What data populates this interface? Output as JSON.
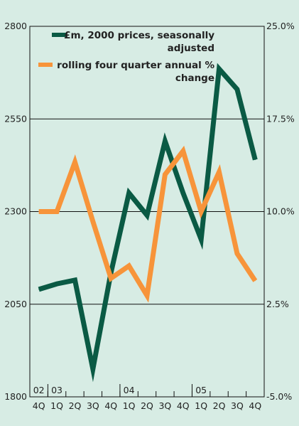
{
  "chart_data": {
    "type": "line",
    "title": "",
    "x_categories": [
      "4Q",
      "1Q",
      "2Q",
      "3Q",
      "4Q",
      "1Q",
      "2Q",
      "3Q",
      "4Q",
      "1Q",
      "2Q",
      "3Q",
      "4Q"
    ],
    "year_labels": [
      {
        "label": "02",
        "index": 0
      },
      {
        "label": "03",
        "index": 1
      },
      {
        "label": "04",
        "index": 5
      },
      {
        "label": "05",
        "index": 9
      }
    ],
    "left_axis": {
      "min": 1800,
      "max": 2800,
      "ticks": [
        1800,
        2050,
        2300,
        2550,
        2800
      ],
      "tick_labels": [
        "1800",
        "2050",
        "2300",
        "2550",
        "2800"
      ]
    },
    "right_axis": {
      "min": -5.0,
      "max": 25.0,
      "ticks": [
        -5.0,
        2.5,
        10.0,
        17.5,
        25.0
      ],
      "tick_labels": [
        "-5.0%",
        "2.5%",
        "10.0%",
        "17.5%",
        "25.0%"
      ]
    },
    "grid": "horizontal",
    "legend_position": "top-right",
    "series": [
      {
        "name": "£m, 2000 prices, seasonally adjusted",
        "legend_lines": [
          "£m, 2000 prices, seasonally",
          "adjusted"
        ],
        "axis": "left",
        "color": "#0a5a44",
        "values": [
          2090,
          2105,
          2115,
          1875,
          2135,
          2350,
          2290,
          2490,
          2350,
          2225,
          2685,
          2630,
          2440
        ]
      },
      {
        "name": "rolling four quarter annual % change",
        "legend_lines": [
          "rolling four quarter annual %",
          "change"
        ],
        "axis": "right",
        "color": "#f7943a",
        "values": [
          10.0,
          10.0,
          14.0,
          9.2,
          4.6,
          5.6,
          3.2,
          13.0,
          14.9,
          10.0,
          13.2,
          6.6,
          4.4
        ]
      }
    ]
  }
}
